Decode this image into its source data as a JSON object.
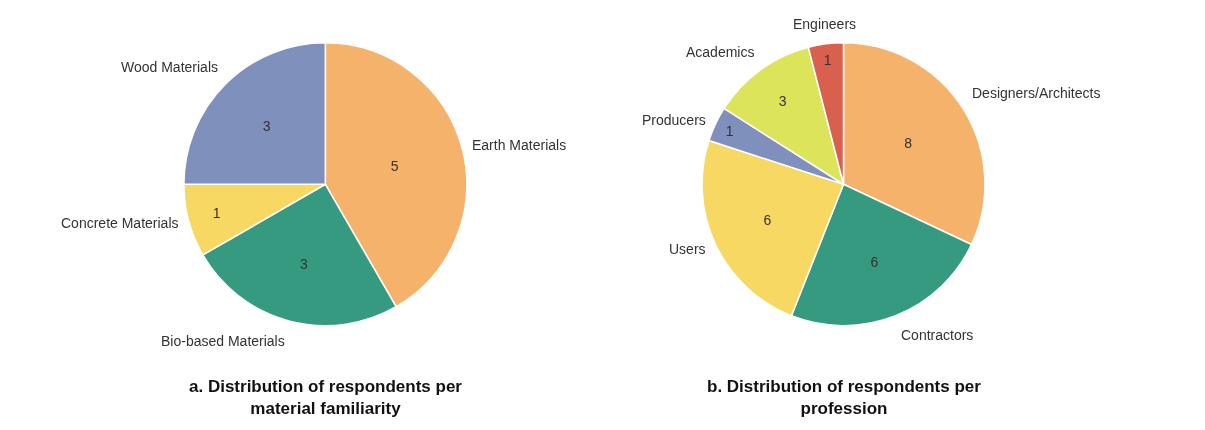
{
  "chart_data": [
    {
      "type": "pie",
      "title": "a. Distribution of respondents per material familiarity",
      "categories": [
        "Earth Materials",
        "Bio-based Materials",
        "Concrete Materials",
        "Wood Materials"
      ],
      "values": [
        5,
        3,
        1,
        3
      ],
      "colors": [
        "#f4b26b",
        "#359a80",
        "#f7d862",
        "#7f90bd"
      ],
      "data_labels": true
    },
    {
      "type": "pie",
      "title": "b. Distribution of respondents per profession",
      "categories": [
        "Designers/Architects",
        "Contractors",
        "Users",
        "Producers",
        "Academics",
        "Engineers"
      ],
      "values": [
        8,
        6,
        6,
        1,
        3,
        1
      ],
      "colors": [
        "#f4b26b",
        "#359a80",
        "#f7d862",
        "#7f90bd",
        "#dce55a",
        "#d95f4f"
      ],
      "data_labels": true
    }
  ]
}
